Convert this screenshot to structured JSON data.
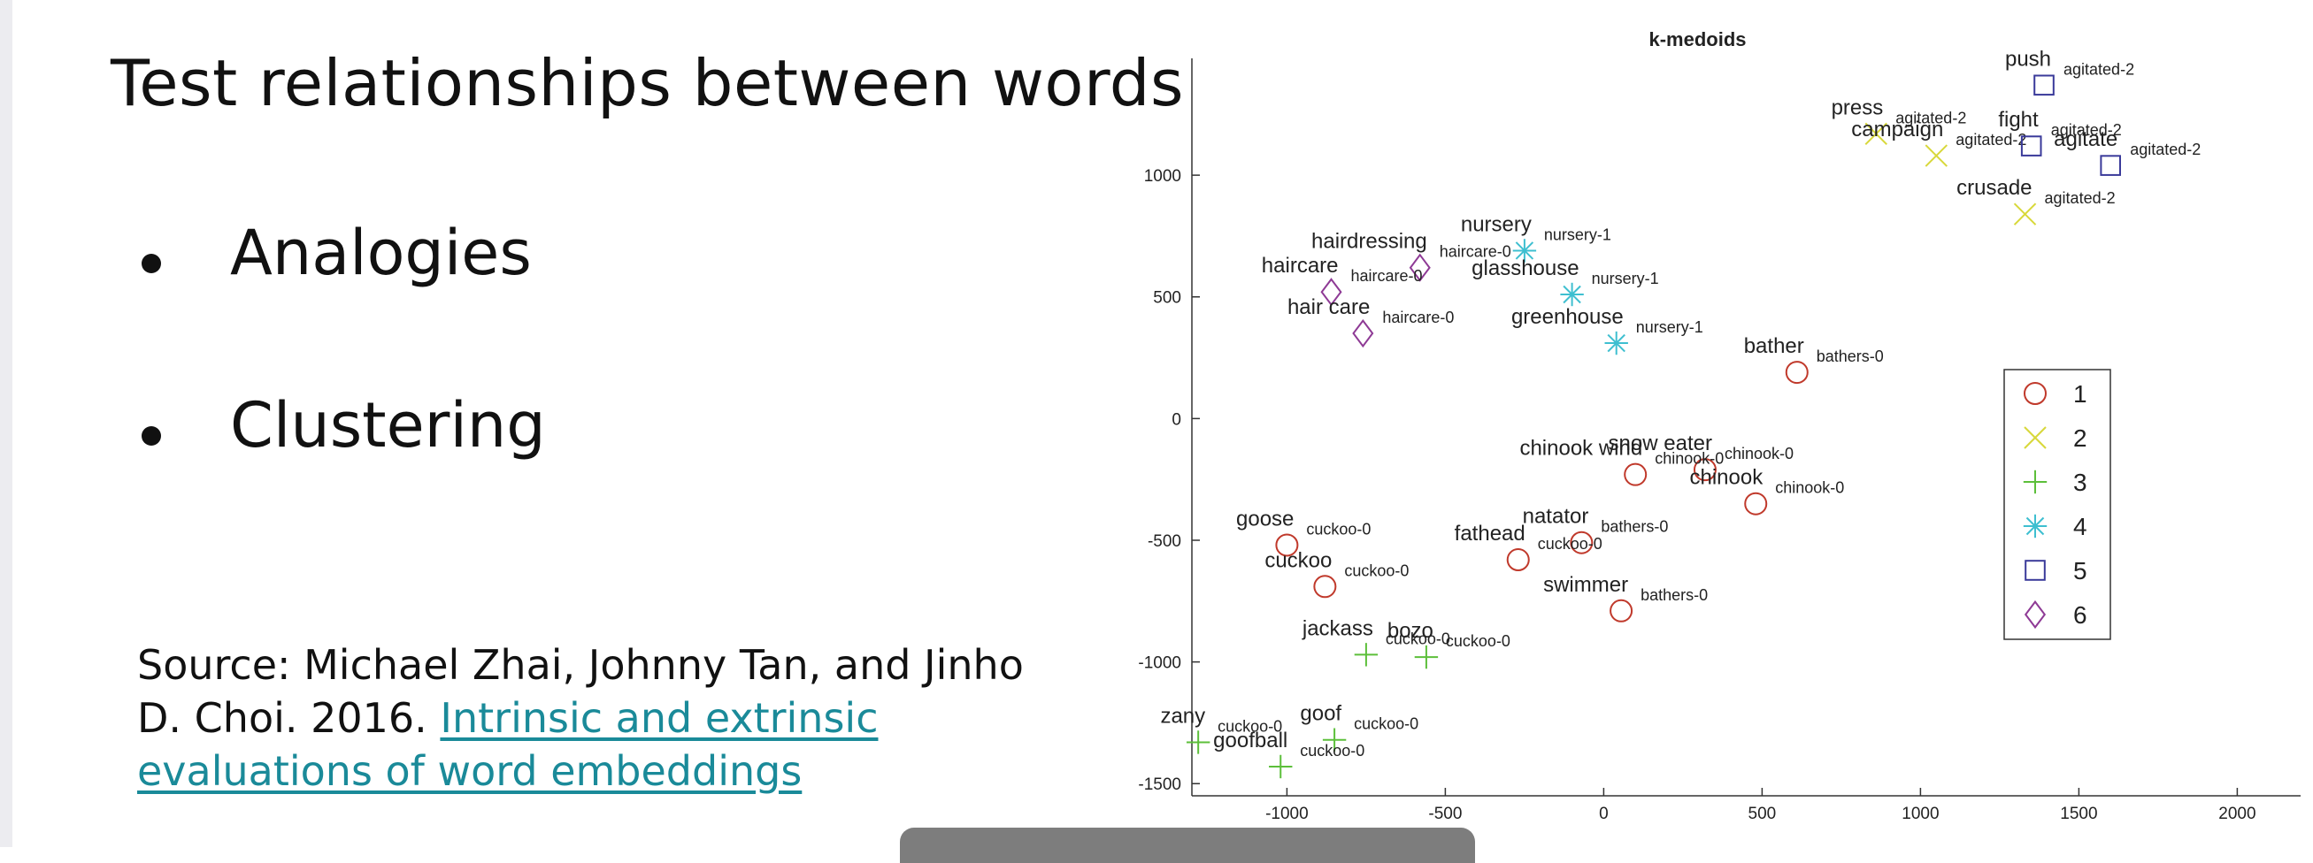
{
  "slide": {
    "title": "Test relationships between words",
    "bullets": [
      "Analogies",
      "Clustering"
    ],
    "source_prefix": "Source: Michael Zhai, Johnny Tan, and Jinho D. Choi. 2016. ",
    "source_link": "Intrinsic and extrinsic evaluations of word embeddings"
  },
  "colors": {
    "link": "#1a8a99",
    "c1": "#c0392b",
    "c2": "#d8d83a",
    "c3": "#5cbf3a",
    "c4": "#3ebfd0",
    "c5": "#3a3a9a",
    "c6": "#8e3a95"
  },
  "chart_data": {
    "type": "scatter",
    "title": "k-medoids",
    "xlim": [
      -1300,
      2200
    ],
    "ylim": [
      -1550,
      1480
    ],
    "xticks": [
      -1000,
      -500,
      0,
      500,
      1000,
      1500,
      2000
    ],
    "yticks": [
      1000,
      500,
      0,
      -500,
      -1000,
      -1500
    ],
    "legend": [
      "1",
      "2",
      "3",
      "4",
      "5",
      "6"
    ],
    "legend_position": "right",
    "points": [
      {
        "word": "push",
        "cluster": 5,
        "x": 1390,
        "y": 1370,
        "label": "agitated-2"
      },
      {
        "word": "press",
        "cluster": 2,
        "x": 860,
        "y": 1170,
        "label": "agitated-2"
      },
      {
        "word": "campaign",
        "cluster": 2,
        "x": 1050,
        "y": 1080,
        "label": "agitated-2"
      },
      {
        "word": "fight",
        "cluster": 5,
        "x": 1350,
        "y": 1120,
        "label": "agitated-2"
      },
      {
        "word": "agitate",
        "cluster": 5,
        "x": 1600,
        "y": 1040,
        "label": "agitated-2"
      },
      {
        "word": "crusade",
        "cluster": 2,
        "x": 1330,
        "y": 840,
        "label": "agitated-2"
      },
      {
        "word": "nursery",
        "cluster": 4,
        "x": -250,
        "y": 690,
        "label": "nursery-1"
      },
      {
        "word": "hairdressing",
        "cluster": 6,
        "x": -580,
        "y": 620,
        "label": "haircare-0"
      },
      {
        "word": "haircare",
        "cluster": 6,
        "x": -860,
        "y": 520,
        "label": "haircare-0"
      },
      {
        "word": "glasshouse",
        "cluster": 4,
        "x": -100,
        "y": 510,
        "label": "nursery-1"
      },
      {
        "word": "hair care",
        "cluster": 6,
        "x": -760,
        "y": 350,
        "label": "haircare-0"
      },
      {
        "word": "greenhouse",
        "cluster": 4,
        "x": 40,
        "y": 310,
        "label": "nursery-1"
      },
      {
        "word": "bather",
        "cluster": 1,
        "x": 610,
        "y": 190,
        "label": "bathers-0"
      },
      {
        "word": "snow eater",
        "cluster": 1,
        "x": 320,
        "y": -210,
        "label": "chinook-0"
      },
      {
        "word": "chinook wind",
        "cluster": 1,
        "x": 100,
        "y": -230,
        "label": "chinook-0"
      },
      {
        "word": "chinook",
        "cluster": 1,
        "x": 480,
        "y": -350,
        "label": "chinook-0"
      },
      {
        "word": "goose",
        "cluster": 1,
        "x": -1000,
        "y": -520,
        "label": "cuckoo-0"
      },
      {
        "word": "natator",
        "cluster": 1,
        "x": -70,
        "y": -510,
        "label": "bathers-0"
      },
      {
        "word": "fathead",
        "cluster": 1,
        "x": -270,
        "y": -580,
        "label": "cuckoo-0"
      },
      {
        "word": "cuckoo",
        "cluster": 1,
        "x": -880,
        "y": -690,
        "label": "cuckoo-0"
      },
      {
        "word": "swimmer",
        "cluster": 1,
        "x": 55,
        "y": -790,
        "label": "bathers-0"
      },
      {
        "word": "jackass",
        "cluster": 3,
        "x": -750,
        "y": -970,
        "label": "cuckoo-0"
      },
      {
        "word": "bozo",
        "cluster": 3,
        "x": -560,
        "y": -980,
        "label": "cuckoo-0"
      },
      {
        "word": "zany",
        "cluster": 3,
        "x": -1280,
        "y": -1330,
        "label": "cuckoo-0"
      },
      {
        "word": "goof",
        "cluster": 3,
        "x": -850,
        "y": -1320,
        "label": "cuckoo-0"
      },
      {
        "word": "goofball",
        "cluster": 3,
        "x": -1020,
        "y": -1430,
        "label": "cuckoo-0"
      }
    ]
  }
}
